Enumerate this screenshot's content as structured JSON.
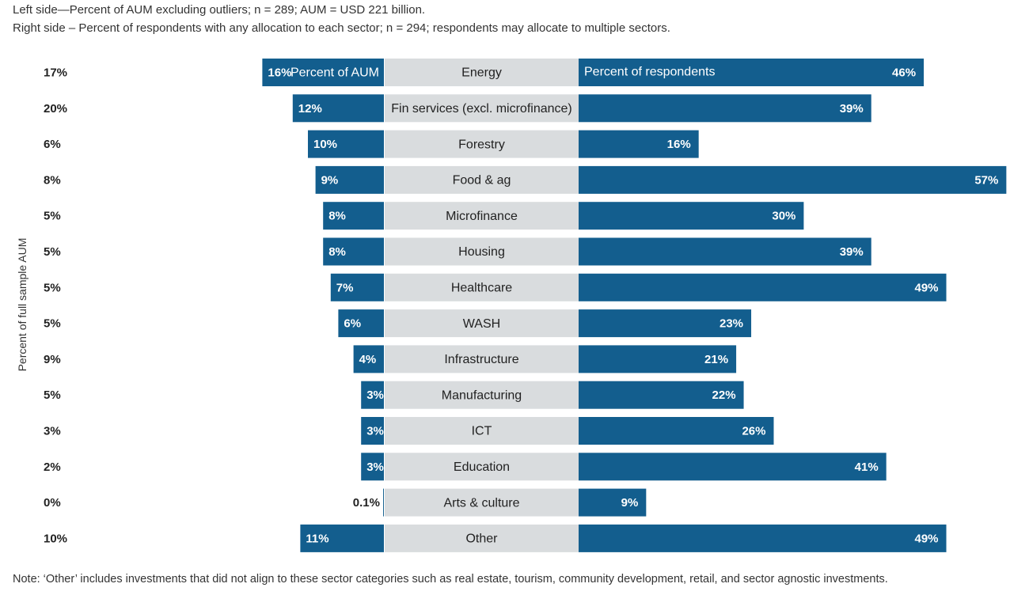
{
  "subtitle_left": "Left side—Percent of AUM excluding outliers; n = 289; AUM = USD 221 billion.",
  "subtitle_right": "Right side – Percent of respondents with any allocation to each sector; n = 294; respondents may allocate to multiple sectors.",
  "y_axis_label": "Percent of full sample AUM",
  "note": "Note: ‘Other’ includes investments that did not align to these sector categories such as real estate, tourism, community development, retail, and sector agnostic investments.",
  "colors": {
    "bar": "#135e8e",
    "category_band": "#d9dcde",
    "text": "#222222"
  },
  "chart_data": {
    "type": "bar",
    "header_left": "Percent of AUM",
    "header_right": "Percent of respondents",
    "categories": [
      "Energy",
      "Fin services (excl. microfinance)",
      "Forestry",
      "Food & ag",
      "Microfinance",
      "Housing",
      "Healthcare",
      "WASH",
      "Infrastructure",
      "Manufacturing",
      "ICT",
      "Education",
      "Arts & culture",
      "Other"
    ],
    "full_sample_aum": [
      "17%",
      "20%",
      "6%",
      "8%",
      "5%",
      "5%",
      "5%",
      "5%",
      "9%",
      "5%",
      "3%",
      "2%",
      "0%",
      "10%"
    ],
    "series": [
      {
        "name": "Percent of AUM",
        "values": [
          16,
          12,
          10,
          9,
          8,
          8,
          7,
          6,
          4,
          3,
          3,
          3,
          0.1,
          11
        ],
        "labels": [
          "16%",
          "12%",
          "10%",
          "9%",
          "8%",
          "8%",
          "7%",
          "6%",
          "4%",
          "3%",
          "3%",
          "3%",
          "0.1%",
          "11%"
        ]
      },
      {
        "name": "Percent of respondents",
        "values": [
          46,
          39,
          16,
          57,
          30,
          39,
          49,
          23,
          21,
          22,
          26,
          41,
          9,
          49
        ],
        "labels": [
          "46%",
          "39%",
          "16%",
          "57%",
          "30%",
          "39%",
          "49%",
          "23%",
          "21%",
          "22%",
          "26%",
          "41%",
          "9%",
          "49%"
        ]
      }
    ]
  }
}
